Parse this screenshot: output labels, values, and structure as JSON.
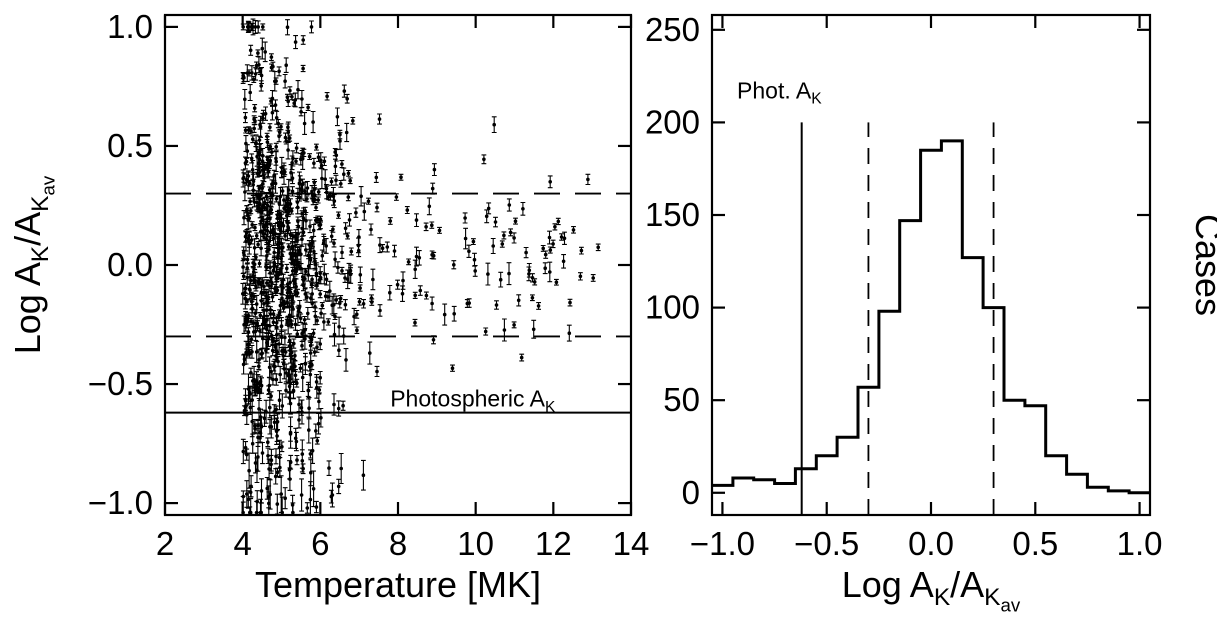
{
  "figure": {
    "background": "#ffffff",
    "line_color": "#000000"
  },
  "chart_data": [
    {
      "type": "scatter",
      "panel": "left",
      "title": "",
      "xlabel": "Temperature [MK]",
      "ylabel_plain": "Log AK/AKav",
      "ylabel_parts": [
        {
          "t": "Log A"
        },
        {
          "t": "K",
          "sub": 1
        },
        {
          "t": "/A"
        },
        {
          "t": "K",
          "sub": 1
        },
        {
          "t": "av",
          "sub": 2
        }
      ],
      "xlim": [
        2,
        14
      ],
      "ylim": [
        -1.05,
        1.05
      ],
      "xticks": [
        2,
        4,
        6,
        8,
        10,
        12,
        14
      ],
      "xtick_labels": [
        "2",
        "4",
        "6",
        "8",
        "10",
        "12",
        "14"
      ],
      "yticks": [
        -1.0,
        -0.5,
        0.0,
        0.5,
        1.0
      ],
      "ytick_labels": [
        "−1.0",
        "−0.5",
        "0.0",
        "0.5",
        "1.0"
      ],
      "hlines": [
        {
          "y": 0.3,
          "style": "dashed"
        },
        {
          "y": -0.3,
          "style": "dashed"
        },
        {
          "y": -0.62,
          "style": "solid",
          "label": "Photospheric AK"
        }
      ],
      "annotation": {
        "text_plain": "Photospheric AK",
        "text_parts": [
          {
            "t": "Photospheric A"
          },
          {
            "t": "K",
            "sub": 1
          }
        ],
        "x": 7.8,
        "y": -0.595
      },
      "scatter_model": {
        "seed": 77041,
        "n_points": 950,
        "x_core": {
          "weight": 0.86,
          "base": 4.0,
          "mean_offset": 0.9,
          "sigma": 0.85
        },
        "x_tail": {
          "base": 6.5,
          "span": 6.7,
          "power": 1.3
        },
        "y_mean": 0.05,
        "y_sigma": {
          "min": 0.12,
          "amp": 0.42,
          "scale": 3.0
        },
        "neg_tail_prob": 0.1,
        "neg_tail_xmax": 7.5,
        "neg_tail_lo": 0.35,
        "neg_tail_span": 0.68,
        "y_clip": [
          -1.04,
          1.0
        ],
        "err_base": 0.012,
        "err_rand": 0.035,
        "err_neg": 0.06
      }
    },
    {
      "type": "histogram",
      "panel": "right",
      "title": "",
      "xlabel_plain": "Log AK/AKav",
      "xlabel_parts": [
        {
          "t": "Log A"
        },
        {
          "t": "K",
          "sub": 1
        },
        {
          "t": "/A"
        },
        {
          "t": "K",
          "sub": 1
        },
        {
          "t": "av",
          "sub": 2
        }
      ],
      "ylabel": "Cases",
      "xlim": [
        -1.05,
        1.05
      ],
      "ylim": [
        -12,
        258
      ],
      "xticks": [
        -1.0,
        -0.5,
        0.0,
        0.5,
        1.0
      ],
      "xtick_labels": [
        "−1.0",
        "−0.5",
        "0.0",
        "0.5",
        "1.0"
      ],
      "yticks": [
        0,
        50,
        100,
        150,
        200,
        250
      ],
      "ytick_labels": [
        "0",
        "50",
        "100",
        "150",
        "200",
        "250"
      ],
      "bin_width": 0.1,
      "bin_centers": [
        -1.0,
        -0.9,
        -0.8,
        -0.7,
        -0.6,
        -0.5,
        -0.4,
        -0.3,
        -0.2,
        -0.1,
        0.0,
        0.1,
        0.2,
        0.3,
        0.4,
        0.5,
        0.6,
        0.7,
        0.8,
        0.9,
        1.0
      ],
      "counts": [
        4,
        8,
        7,
        5,
        13,
        20,
        30,
        57,
        98,
        147,
        185,
        190,
        127,
        100,
        50,
        47,
        20,
        10,
        3,
        1,
        0
      ],
      "vlines": [
        {
          "x": -0.62,
          "style": "solid",
          "y0": -12,
          "y1": 200,
          "label": "Phot. AK"
        },
        {
          "x": -0.3,
          "style": "dashed",
          "y0": -12,
          "y1": 200
        },
        {
          "x": 0.3,
          "style": "dashed",
          "y0": -12,
          "y1": 200
        }
      ],
      "annotation": {
        "text_plain": "Phot. AK",
        "text_parts": [
          {
            "t": "Phot. A"
          },
          {
            "t": "K",
            "sub": 1
          }
        ],
        "x": -0.93,
        "y": 213
      }
    }
  ]
}
